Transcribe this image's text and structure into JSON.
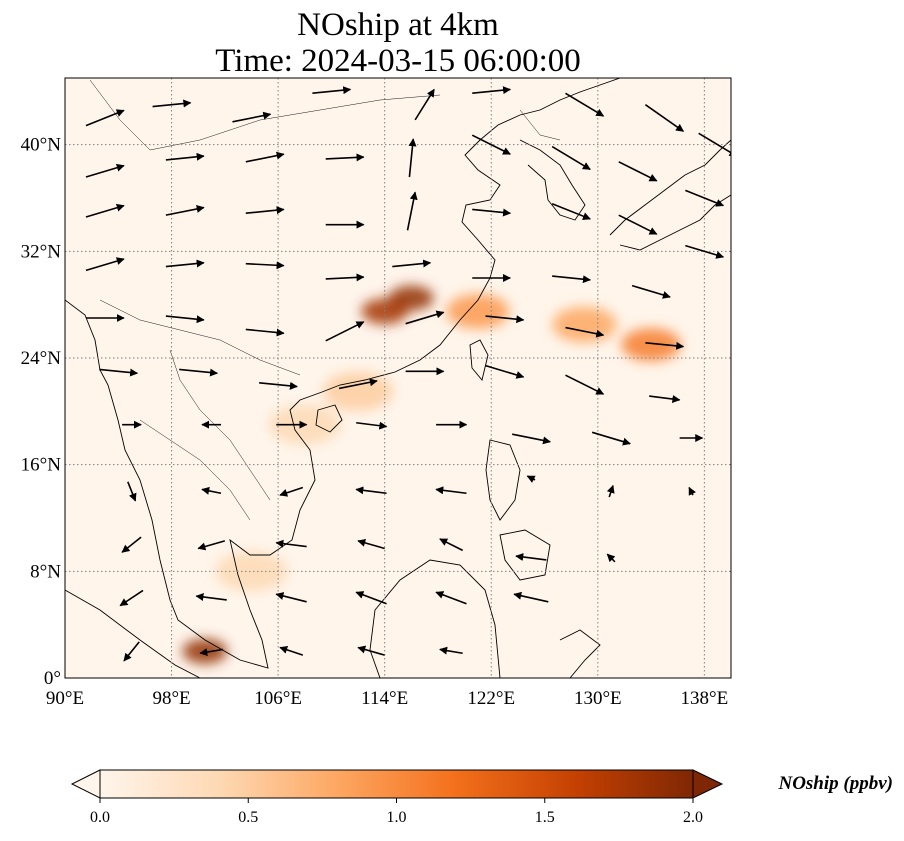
{
  "title_line1": "NOship at 4km",
  "title_line2": "Time: 2024-03-15 06:00:00",
  "extent": {
    "lon_min": 90,
    "lon_max": 140,
    "lat_min": 0,
    "lat_max": 45
  },
  "x_ticks": [
    {
      "value": 90,
      "label": "90°E"
    },
    {
      "value": 98,
      "label": "98°E"
    },
    {
      "value": 106,
      "label": "106°E"
    },
    {
      "value": 114,
      "label": "114°E"
    },
    {
      "value": 122,
      "label": "122°E"
    },
    {
      "value": 130,
      "label": "130°E"
    },
    {
      "value": 138,
      "label": "138°E"
    }
  ],
  "y_ticks": [
    {
      "value": 0,
      "label": "0°"
    },
    {
      "value": 8,
      "label": "8°N"
    },
    {
      "value": 16,
      "label": "16°N"
    },
    {
      "value": 24,
      "label": "24°N"
    },
    {
      "value": 32,
      "label": "32°N"
    },
    {
      "value": 40,
      "label": "40°N"
    }
  ],
  "colorbar": {
    "label": "NOship (ppbv)",
    "min": 0.0,
    "max": 2.0,
    "ticks": [
      "0.0",
      "0.5",
      "1.0",
      "1.5",
      "2.0"
    ],
    "colormap": [
      "#fff5eb",
      "#fdd9b4",
      "#fda762",
      "#f3701b",
      "#c54102",
      "#7f2704"
    ],
    "extend": "both"
  },
  "colors": {
    "coastline": "#000000",
    "gridline": "#808080",
    "arrow": "#000000"
  },
  "concentration_hotspots": [
    {
      "lon": 116.0,
      "lat": 28.5,
      "value": 1.9
    },
    {
      "lon": 114.0,
      "lat": 27.5,
      "value": 1.8
    },
    {
      "lon": 100.5,
      "lat": 2.0,
      "value": 1.9
    },
    {
      "lon": 134.0,
      "lat": 25.0,
      "value": 1.1
    },
    {
      "lon": 129.0,
      "lat": 26.5,
      "value": 0.8
    },
    {
      "lon": 121.0,
      "lat": 27.5,
      "value": 0.9
    },
    {
      "lon": 112.0,
      "lat": 21.5,
      "value": 0.5
    },
    {
      "lon": 108.0,
      "lat": 19.0,
      "value": 0.4
    },
    {
      "lon": 104.0,
      "lat": 8.0,
      "value": 0.4
    }
  ],
  "wind_vectors": [
    {
      "lon": 93,
      "lat": 42,
      "u": 1,
      "v": 0.4
    },
    {
      "lon": 98,
      "lat": 43,
      "u": 1,
      "v": 0.1
    },
    {
      "lon": 104,
      "lat": 42,
      "u": 1,
      "v": 0.2
    },
    {
      "lon": 110,
      "lat": 44,
      "u": 1,
      "v": 0.1
    },
    {
      "lon": 117,
      "lat": 43,
      "u": 0.5,
      "v": 0.8
    },
    {
      "lon": 122,
      "lat": 44,
      "u": 1,
      "v": 0.1
    },
    {
      "lon": 129,
      "lat": 43,
      "u": 1,
      "v": -0.6
    },
    {
      "lon": 135,
      "lat": 42,
      "u": 1,
      "v": -0.7
    },
    {
      "lon": 139,
      "lat": 40,
      "u": 1,
      "v": -0.6
    },
    {
      "lon": 93,
      "lat": 38,
      "u": 1,
      "v": 0.3
    },
    {
      "lon": 99,
      "lat": 39,
      "u": 1,
      "v": 0.1
    },
    {
      "lon": 105,
      "lat": 39,
      "u": 1,
      "v": 0.2
    },
    {
      "lon": 111,
      "lat": 39,
      "u": 1,
      "v": 0.05
    },
    {
      "lon": 116,
      "lat": 39,
      "u": 0.1,
      "v": 1
    },
    {
      "lon": 122,
      "lat": 40,
      "u": 1,
      "v": -0.5
    },
    {
      "lon": 128,
      "lat": 39,
      "u": 1,
      "v": -0.6
    },
    {
      "lon": 133,
      "lat": 38,
      "u": 1,
      "v": -0.5
    },
    {
      "lon": 138,
      "lat": 36,
      "u": 1,
      "v": -0.4
    },
    {
      "lon": 93,
      "lat": 35,
      "u": 1,
      "v": 0.3
    },
    {
      "lon": 99,
      "lat": 35,
      "u": 1,
      "v": 0.2
    },
    {
      "lon": 105,
      "lat": 35,
      "u": 1,
      "v": 0.1
    },
    {
      "lon": 111,
      "lat": 34,
      "u": 1,
      "v": 0
    },
    {
      "lon": 116,
      "lat": 35,
      "u": 0.2,
      "v": 1
    },
    {
      "lon": 122,
      "lat": 35,
      "u": 1,
      "v": -0.1
    },
    {
      "lon": 128,
      "lat": 35,
      "u": 1,
      "v": -0.4
    },
    {
      "lon": 133,
      "lat": 34,
      "u": 1,
      "v": -0.5
    },
    {
      "lon": 138,
      "lat": 32,
      "u": 1,
      "v": -0.3
    },
    {
      "lon": 93,
      "lat": 31,
      "u": 1,
      "v": 0.3
    },
    {
      "lon": 99,
      "lat": 31,
      "u": 1,
      "v": 0.1
    },
    {
      "lon": 105,
      "lat": 31,
      "u": 1,
      "v": -0.05
    },
    {
      "lon": 111,
      "lat": 30,
      "u": 1,
      "v": 0.05
    },
    {
      "lon": 116,
      "lat": 31,
      "u": 1,
      "v": 0.1
    },
    {
      "lon": 122,
      "lat": 30,
      "u": 1,
      "v": 0
    },
    {
      "lon": 128,
      "lat": 30,
      "u": 1,
      "v": -0.1
    },
    {
      "lon": 134,
      "lat": 29,
      "u": 1,
      "v": -0.3
    },
    {
      "lon": 93,
      "lat": 27,
      "u": 1,
      "v": 0
    },
    {
      "lon": 99,
      "lat": 27,
      "u": 1,
      "v": -0.1
    },
    {
      "lon": 105,
      "lat": 26,
      "u": 1,
      "v": -0.1
    },
    {
      "lon": 111,
      "lat": 26,
      "u": 1,
      "v": 0.5
    },
    {
      "lon": 117,
      "lat": 27,
      "u": 1,
      "v": 0.3
    },
    {
      "lon": 123,
      "lat": 27,
      "u": 1,
      "v": -0.1
    },
    {
      "lon": 129,
      "lat": 26,
      "u": 1,
      "v": -0.2
    },
    {
      "lon": 135,
      "lat": 25,
      "u": 1,
      "v": -0.1
    },
    {
      "lon": 94,
      "lat": 23,
      "u": 1,
      "v": -0.1
    },
    {
      "lon": 100,
      "lat": 23,
      "u": 1,
      "v": -0.1
    },
    {
      "lon": 106,
      "lat": 22,
      "u": 1,
      "v": -0.1
    },
    {
      "lon": 112,
      "lat": 22,
      "u": 1,
      "v": 0.2
    },
    {
      "lon": 117,
      "lat": 23,
      "u": 1,
      "v": 0
    },
    {
      "lon": 123,
      "lat": 23,
      "u": 1,
      "v": -0.3
    },
    {
      "lon": 129,
      "lat": 22,
      "u": 1,
      "v": -0.5
    },
    {
      "lon": 135,
      "lat": 21,
      "u": 0.8,
      "v": -0.1
    },
    {
      "lon": 95,
      "lat": 19,
      "u": 0.5,
      "v": 0
    },
    {
      "lon": 101,
      "lat": 19,
      "u": -0.5,
      "v": 0
    },
    {
      "lon": 107,
      "lat": 19,
      "u": 0.8,
      "v": 0
    },
    {
      "lon": 113,
      "lat": 19,
      "u": 0.8,
      "v": -0.1
    },
    {
      "lon": 119,
      "lat": 19,
      "u": 0.8,
      "v": 0
    },
    {
      "lon": 125,
      "lat": 18,
      "u": 1,
      "v": -0.2
    },
    {
      "lon": 131,
      "lat": 18,
      "u": 1,
      "v": -0.3
    },
    {
      "lon": 137,
      "lat": 18,
      "u": 0.6,
      "v": 0
    },
    {
      "lon": 95,
      "lat": 14,
      "u": 0.2,
      "v": -0.5
    },
    {
      "lon": 101,
      "lat": 14,
      "u": -0.5,
      "v": 0.1
    },
    {
      "lon": 107,
      "lat": 14,
      "u": -0.6,
      "v": -0.2
    },
    {
      "lon": 113,
      "lat": 14,
      "u": -0.8,
      "v": 0.1
    },
    {
      "lon": 119,
      "lat": 14,
      "u": -0.8,
      "v": 0.1
    },
    {
      "lon": 125,
      "lat": 15,
      "u": -0.2,
      "v": 0.1
    },
    {
      "lon": 131,
      "lat": 14,
      "u": 0.1,
      "v": 0.3
    },
    {
      "lon": 137,
      "lat": 14,
      "u": -0.1,
      "v": 0.2
    },
    {
      "lon": 95,
      "lat": 10,
      "u": -0.5,
      "v": -0.4
    },
    {
      "lon": 101,
      "lat": 10,
      "u": -0.7,
      "v": -0.2
    },
    {
      "lon": 107,
      "lat": 10,
      "u": -0.8,
      "v": 0.1
    },
    {
      "lon": 113,
      "lat": 10,
      "u": -0.7,
      "v": 0.2
    },
    {
      "lon": 119,
      "lat": 10,
      "u": -0.6,
      "v": 0.3
    },
    {
      "lon": 125,
      "lat": 9,
      "u": -0.8,
      "v": 0.1
    },
    {
      "lon": 131,
      "lat": 9,
      "u": -0.2,
      "v": 0.2
    },
    {
      "lon": 95,
      "lat": 6,
      "u": -0.6,
      "v": -0.4
    },
    {
      "lon": 101,
      "lat": 6,
      "u": -0.8,
      "v": 0.1
    },
    {
      "lon": 107,
      "lat": 6,
      "u": -0.8,
      "v": 0.2
    },
    {
      "lon": 113,
      "lat": 6,
      "u": -0.8,
      "v": 0.3
    },
    {
      "lon": 119,
      "lat": 6,
      "u": -0.8,
      "v": 0.3
    },
    {
      "lon": 125,
      "lat": 6,
      "u": -0.9,
      "v": 0.2
    },
    {
      "lon": 95,
      "lat": 2,
      "u": -0.4,
      "v": -0.5
    },
    {
      "lon": 101,
      "lat": 2,
      "u": -0.6,
      "v": -0.1
    },
    {
      "lon": 107,
      "lat": 2,
      "u": -0.6,
      "v": 0.2
    },
    {
      "lon": 113,
      "lat": 2,
      "u": -0.7,
      "v": 0.2
    },
    {
      "lon": 119,
      "lat": 2,
      "u": -0.6,
      "v": 0.1
    }
  ]
}
